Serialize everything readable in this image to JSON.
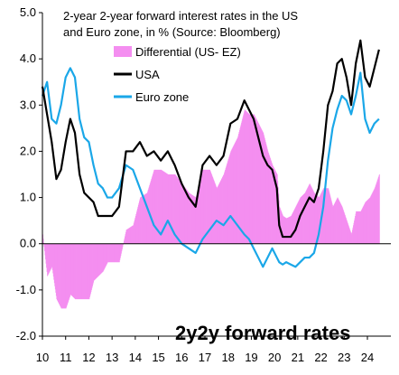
{
  "chart_data": {
    "type": "line",
    "title_lines": [
      "2-year 2-year forward interest rates in the US",
      "and Euro zone, in % (Source: Bloomberg)"
    ],
    "annotation": "2y2y forward rates",
    "xlabel": "",
    "ylabel": "",
    "x_ticks": [
      "10",
      "11",
      "12",
      "13",
      "14",
      "15",
      "16",
      "17",
      "18",
      "19",
      "20",
      "21",
      "22",
      "23",
      "24"
    ],
    "y_ticks": [
      "5.0",
      "4.0",
      "3.0",
      "2.0",
      "1.0",
      "0.0",
      "-1.0",
      "-2.0"
    ],
    "xlim": [
      2010,
      2024.7
    ],
    "ylim": [
      -2.0,
      5.0
    ],
    "legend_position": "top-left",
    "colors": {
      "usa": "#000000",
      "euro": "#1aa7e8",
      "differential": "#f48ef0"
    },
    "series": [
      {
        "name": "USA",
        "x": [
          2010.0,
          2010.2,
          2010.4,
          2010.6,
          2010.8,
          2011.0,
          2011.2,
          2011.4,
          2011.6,
          2011.8,
          2012.0,
          2012.2,
          2012.4,
          2012.6,
          2012.8,
          2013.0,
          2013.3,
          2013.6,
          2013.9,
          2014.2,
          2014.5,
          2014.8,
          2015.1,
          2015.4,
          2015.7,
          2016.0,
          2016.3,
          2016.6,
          2016.9,
          2017.2,
          2017.5,
          2017.8,
          2018.1,
          2018.4,
          2018.7,
          2018.9,
          2019.1,
          2019.3,
          2019.5,
          2019.7,
          2019.9,
          2020.1,
          2020.2,
          2020.35,
          2020.5,
          2020.7,
          2020.9,
          2021.1,
          2021.3,
          2021.5,
          2021.7,
          2021.9,
          2022.1,
          2022.3,
          2022.5,
          2022.7,
          2022.9,
          2023.1,
          2023.3,
          2023.5,
          2023.7,
          2023.9,
          2024.1,
          2024.3,
          2024.5
        ],
        "values": [
          3.4,
          2.8,
          2.2,
          1.4,
          1.6,
          2.2,
          2.7,
          2.4,
          1.5,
          1.1,
          1.0,
          0.9,
          0.6,
          0.6,
          0.6,
          0.6,
          0.8,
          2.0,
          2.0,
          2.2,
          1.9,
          2.0,
          1.8,
          2.0,
          1.7,
          1.3,
          1.0,
          0.8,
          1.7,
          1.9,
          1.7,
          1.9,
          2.6,
          2.7,
          3.1,
          2.9,
          2.7,
          2.3,
          1.9,
          1.7,
          1.6,
          1.2,
          0.4,
          0.15,
          0.15,
          0.15,
          0.3,
          0.6,
          0.8,
          1.0,
          0.9,
          1.2,
          2.0,
          3.0,
          3.3,
          3.9,
          4.0,
          3.6,
          3.0,
          3.9,
          4.4,
          3.6,
          3.4,
          3.8,
          4.2
        ]
      },
      {
        "name": "Euro zone",
        "x": [
          2010.0,
          2010.2,
          2010.4,
          2010.6,
          2010.8,
          2011.0,
          2011.2,
          2011.4,
          2011.6,
          2011.8,
          2012.0,
          2012.2,
          2012.4,
          2012.6,
          2012.8,
          2013.0,
          2013.3,
          2013.6,
          2013.9,
          2014.2,
          2014.5,
          2014.8,
          2015.1,
          2015.4,
          2015.7,
          2016.0,
          2016.3,
          2016.6,
          2016.9,
          2017.2,
          2017.5,
          2017.8,
          2018.1,
          2018.4,
          2018.7,
          2018.9,
          2019.1,
          2019.3,
          2019.5,
          2019.7,
          2019.9,
          2020.1,
          2020.2,
          2020.35,
          2020.5,
          2020.7,
          2020.9,
          2021.1,
          2021.3,
          2021.5,
          2021.7,
          2021.9,
          2022.1,
          2022.3,
          2022.5,
          2022.7,
          2022.9,
          2023.1,
          2023.3,
          2023.5,
          2023.7,
          2023.9,
          2024.1,
          2024.3,
          2024.5
        ],
        "values": [
          3.2,
          3.5,
          2.7,
          2.6,
          3.0,
          3.6,
          3.8,
          3.6,
          2.7,
          2.3,
          2.2,
          1.7,
          1.3,
          1.2,
          1.0,
          1.0,
          1.2,
          1.7,
          1.6,
          1.2,
          0.8,
          0.4,
          0.2,
          0.5,
          0.2,
          0.0,
          -0.1,
          -0.2,
          0.1,
          0.3,
          0.5,
          0.4,
          0.6,
          0.4,
          0.2,
          0.1,
          -0.1,
          -0.3,
          -0.5,
          -0.3,
          -0.1,
          -0.3,
          -0.4,
          -0.45,
          -0.4,
          -0.45,
          -0.5,
          -0.4,
          -0.3,
          -0.3,
          -0.2,
          0.2,
          0.8,
          1.8,
          2.5,
          2.9,
          3.2,
          3.1,
          2.8,
          3.2,
          3.7,
          2.7,
          2.4,
          2.6,
          2.7
        ]
      },
      {
        "name": "Differential (US- EZ)",
        "x": [
          2010.0,
          2010.2,
          2010.4,
          2010.6,
          2010.8,
          2011.0,
          2011.2,
          2011.4,
          2011.6,
          2011.8,
          2012.0,
          2012.2,
          2012.4,
          2012.6,
          2012.8,
          2013.0,
          2013.3,
          2013.6,
          2013.9,
          2014.2,
          2014.5,
          2014.8,
          2015.1,
          2015.4,
          2015.7,
          2016.0,
          2016.3,
          2016.6,
          2016.9,
          2017.2,
          2017.5,
          2017.8,
          2018.1,
          2018.4,
          2018.7,
          2018.9,
          2019.1,
          2019.3,
          2019.5,
          2019.7,
          2019.9,
          2020.1,
          2020.2,
          2020.35,
          2020.5,
          2020.7,
          2020.9,
          2021.1,
          2021.3,
          2021.5,
          2021.7,
          2021.9,
          2022.1,
          2022.3,
          2022.5,
          2022.7,
          2022.9,
          2023.1,
          2023.3,
          2023.5,
          2023.7,
          2023.9,
          2024.1,
          2024.3,
          2024.5
        ],
        "values": [
          0.2,
          -0.7,
          -0.5,
          -1.2,
          -1.4,
          -1.4,
          -1.1,
          -1.2,
          -1.2,
          -1.2,
          -1.2,
          -0.8,
          -0.7,
          -0.6,
          -0.4,
          -0.4,
          -0.4,
          0.3,
          0.4,
          1.0,
          1.1,
          1.6,
          1.6,
          1.5,
          1.5,
          1.3,
          1.1,
          1.0,
          1.6,
          1.6,
          1.2,
          1.5,
          2.0,
          2.3,
          2.9,
          2.8,
          2.8,
          2.6,
          2.4,
          2.0,
          1.7,
          1.5,
          0.8,
          0.6,
          0.55,
          0.6,
          0.8,
          1.0,
          1.1,
          1.3,
          1.1,
          1.0,
          1.2,
          1.2,
          0.8,
          1.0,
          0.8,
          0.5,
          0.2,
          0.7,
          0.7,
          0.9,
          1.0,
          1.2,
          1.5
        ]
      }
    ]
  }
}
